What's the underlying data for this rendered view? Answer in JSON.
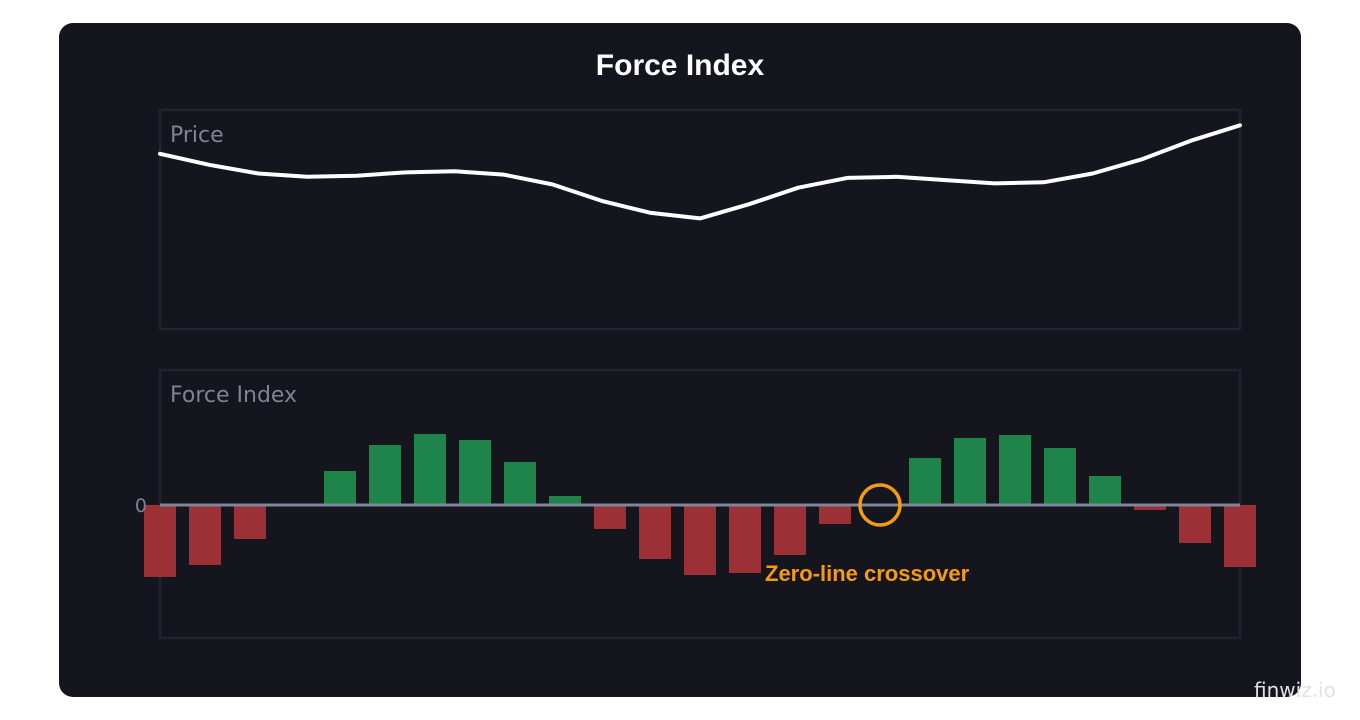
{
  "chart_data": {
    "type": "bar",
    "title": "Force Index",
    "panels": [
      {
        "name": "Price",
        "type": "line",
        "values": [
          8.0,
          7.5,
          7.1,
          6.95,
          7.0,
          7.15,
          7.2,
          7.05,
          6.6,
          5.85,
          5.3,
          5.05,
          5.7,
          6.45,
          6.9,
          6.95,
          6.8,
          6.65,
          6.7,
          7.1,
          7.75,
          8.6,
          9.3
        ]
      },
      {
        "name": "Force Index",
        "type": "bar",
        "zero_label": "0",
        "values": [
          -7.2,
          -6.0,
          -3.4,
          0,
          3.4,
          6.0,
          7.1,
          6.5,
          4.3,
          0.9,
          -2.4,
          -5.4,
          -7.0,
          -6.8,
          -5.0,
          -1.9,
          0,
          4.7,
          6.7,
          7.0,
          5.7,
          2.9,
          -0.5,
          -3.8,
          -6.2
        ],
        "colors": {
          "positive": "#1e8449",
          "negative": "#9b3136"
        }
      }
    ],
    "annotation": {
      "text": "Zero-line crossover",
      "bar_index": 16,
      "color": "#f39c12"
    },
    "grid": false
  },
  "watermark": "finwiz.io"
}
